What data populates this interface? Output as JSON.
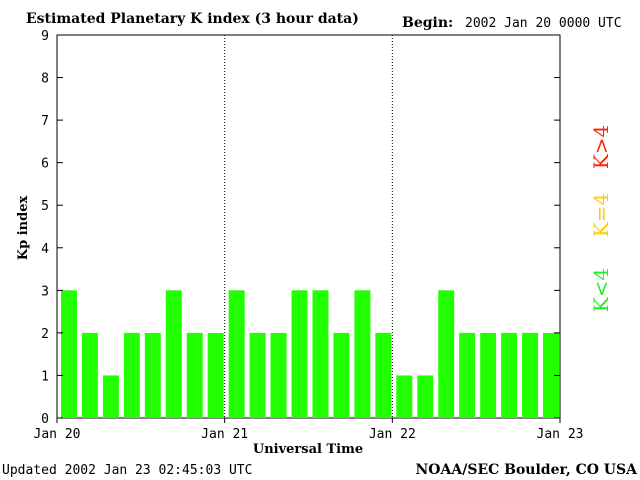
{
  "header": {
    "title": "Estimated Planetary K index (3 hour data)",
    "begin_label": "Begin:",
    "begin_value": "2002 Jan 20 0000 UTC"
  },
  "footer": {
    "updated": "Updated 2002 Jan 23 02:45:03 UTC",
    "source": "NOAA/SEC Boulder, CO USA"
  },
  "legend": [
    {
      "label": "K<4",
      "color": "#22ee22"
    },
    {
      "label": "K=4",
      "color": "#ffcc00"
    },
    {
      "label": "K>4",
      "color": "#ff2200"
    }
  ],
  "colors": {
    "bar_quiet": "#22ff00",
    "bar_active": "#ffcc00",
    "bar_storm": "#ff2200"
  },
  "chart_data": {
    "type": "bar",
    "title": "Estimated Planetary K index (3 hour data)",
    "xlabel": "Universal Time",
    "ylabel": "Kp index",
    "ylim": [
      0,
      9
    ],
    "yticks": [
      0,
      1,
      2,
      3,
      4,
      5,
      6,
      7,
      8,
      9
    ],
    "x_tick_labels": [
      "Jan 20",
      "Jan 21",
      "Jan 22",
      "Jan 23"
    ],
    "day_dividers": [
      "Jan 21",
      "Jan 22"
    ],
    "grid": false,
    "values": [
      3,
      2,
      1,
      2,
      2,
      3,
      2,
      2,
      3,
      2,
      2,
      3,
      3,
      2,
      3,
      2,
      1,
      1,
      3,
      2,
      2,
      2,
      2,
      2
    ]
  }
}
